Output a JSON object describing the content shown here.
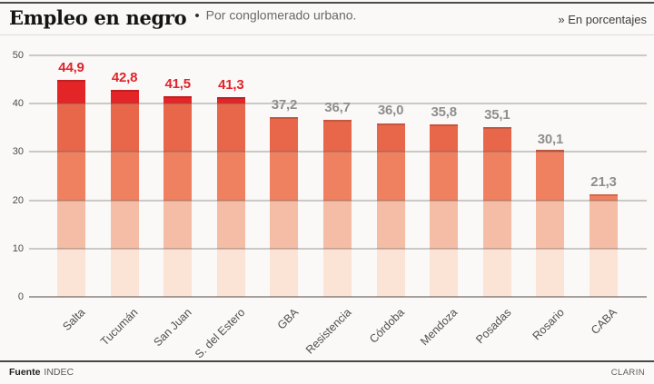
{
  "header": {
    "title": "Empleo en negro",
    "separator": "•",
    "subtitle": "Por conglomerado urbano.",
    "unit_note": "» En porcentajes"
  },
  "footer": {
    "source_label": "Fuente",
    "source_value": "INDEC",
    "credit": "CLARIN"
  },
  "colors": {
    "value_label_red": "#e0242b",
    "value_label_gray": "#8e8e8e",
    "gridline": "rgba(95,88,82,0.30)",
    "baseline": "rgba(95,88,82,0.55)"
  },
  "chart_data": {
    "type": "bar",
    "title": "Empleo en negro",
    "subtitle": "Por conglomerado urbano",
    "ylabel": "En porcentajes",
    "categories": [
      "Salta",
      "Tucumán",
      "San Juan",
      "S. del Estero",
      "GBA",
      "Resistencia",
      "Córdoba",
      "Mendoza",
      "Posadas",
      "Rosario",
      "CABA"
    ],
    "values": [
      44.9,
      42.8,
      41.5,
      41.3,
      37.2,
      36.7,
      36.0,
      35.8,
      35.1,
      30.1,
      21.3
    ],
    "value_labels": [
      "44,9",
      "42,8",
      "41,5",
      "41,3",
      "37,2",
      "36,7",
      "36,0",
      "35,8",
      "35,1",
      "30,1",
      "21,3"
    ],
    "ylim": [
      0,
      50
    ],
    "yticks": [
      0,
      10,
      20,
      30,
      40,
      50
    ],
    "grid": true,
    "legend": false,
    "highlight_min_value": 40,
    "band_step": 10,
    "band_colors_bottom_to_top": [
      "#fbe3d5",
      "#f6bda6",
      "#ef8160",
      "#e8664a",
      "#e42528"
    ]
  }
}
